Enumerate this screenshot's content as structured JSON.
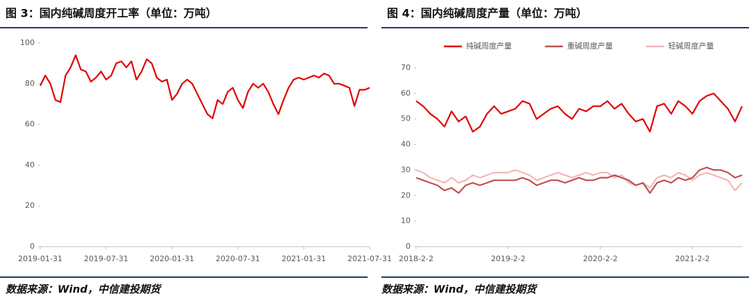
{
  "chart_data": [
    {
      "type": "line",
      "title": "图 3：国内纯碱周度开工率（单位：万吨）",
      "source": "数据来源：Wind，中信建投期货",
      "categories": [
        "2019-01-31",
        null,
        null,
        null,
        null,
        null,
        null,
        null,
        null,
        null,
        null,
        null,
        null,
        "2019-07-31",
        null,
        null,
        null,
        null,
        null,
        null,
        null,
        null,
        null,
        null,
        null,
        null,
        "2020-01-31",
        null,
        null,
        null,
        null,
        null,
        null,
        null,
        null,
        null,
        null,
        null,
        null,
        "2020-07-31",
        null,
        null,
        null,
        null,
        null,
        null,
        null,
        null,
        null,
        null,
        null,
        null,
        "2021-01-31",
        null,
        null,
        null,
        null,
        null,
        null,
        null,
        null,
        null,
        null,
        null,
        null,
        "2021-07-31"
      ],
      "values": [
        79,
        84,
        80,
        72,
        71,
        84,
        88,
        94,
        87,
        86,
        81,
        83,
        86,
        82,
        84,
        90,
        91,
        88,
        91,
        82,
        86,
        92,
        90,
        83,
        81,
        82,
        72,
        75,
        80,
        82,
        80,
        75,
        70,
        65,
        63,
        72,
        70,
        76,
        78,
        72,
        68,
        76,
        80,
        78,
        80,
        76,
        70,
        65,
        72,
        78,
        82,
        83,
        82,
        83,
        84,
        83,
        85,
        84,
        80,
        80,
        79,
        78,
        69,
        77,
        77,
        78
      ],
      "color": "#e00000",
      "ylim": [
        0,
        100
      ],
      "yticks": [
        0,
        20,
        40,
        60,
        80,
        100
      ],
      "grid": false
    },
    {
      "type": "line",
      "title": "图 4：国内纯碱周度产量（单位：万吨）",
      "source": "数据来源：Wind，中信建投期货",
      "categories": [
        "2018-2-2",
        null,
        null,
        null,
        null,
        null,
        null,
        null,
        null,
        null,
        null,
        null,
        null,
        "2019-2-2",
        null,
        null,
        null,
        null,
        null,
        null,
        null,
        null,
        null,
        null,
        null,
        null,
        "2020-2-2",
        null,
        null,
        null,
        null,
        null,
        null,
        null,
        null,
        null,
        null,
        null,
        null,
        "2021-2-2",
        null,
        null,
        null,
        null,
        null,
        null,
        null
      ],
      "series": [
        {
          "name": "纯碱周度产量",
          "color": "#e00000",
          "values": [
            57,
            55,
            52,
            50,
            47,
            53,
            49,
            51,
            45,
            47,
            52,
            55,
            52,
            53,
            54,
            57,
            56,
            50,
            52,
            54,
            55,
            52,
            50,
            54,
            53,
            55,
            55,
            57,
            54,
            56,
            52,
            49,
            50,
            45,
            55,
            56,
            52,
            57,
            55,
            52,
            57,
            59,
            60,
            57,
            54,
            49,
            55
          ]
        },
        {
          "name": "重碱周度产量",
          "color": "#c0504d",
          "values": [
            27,
            26,
            25,
            24,
            22,
            23,
            21,
            24,
            25,
            24,
            25,
            26,
            26,
            26,
            26,
            27,
            26,
            24,
            25,
            26,
            26,
            25,
            26,
            27,
            26,
            26,
            27,
            27,
            28,
            27,
            26,
            24,
            25,
            21,
            25,
            26,
            25,
            27,
            26,
            27,
            30,
            31,
            30,
            30,
            29,
            27,
            28
          ]
        },
        {
          "name": "轻碱周度产量",
          "color": "#f4b6b6",
          "values": [
            30,
            29,
            27,
            26,
            25,
            27,
            25,
            26,
            28,
            27,
            28,
            29,
            29,
            29,
            30,
            29,
            28,
            26,
            27,
            28,
            29,
            28,
            27,
            28,
            29,
            28,
            29,
            29,
            27,
            28,
            25,
            24,
            25,
            23,
            27,
            28,
            27,
            29,
            28,
            26,
            28,
            29,
            28,
            27,
            26,
            22,
            25
          ]
        }
      ],
      "ylim": [
        0,
        70
      ],
      "yticks": [
        0,
        10,
        20,
        30,
        40,
        50,
        60,
        70
      ],
      "grid": false,
      "legend": "top"
    }
  ]
}
